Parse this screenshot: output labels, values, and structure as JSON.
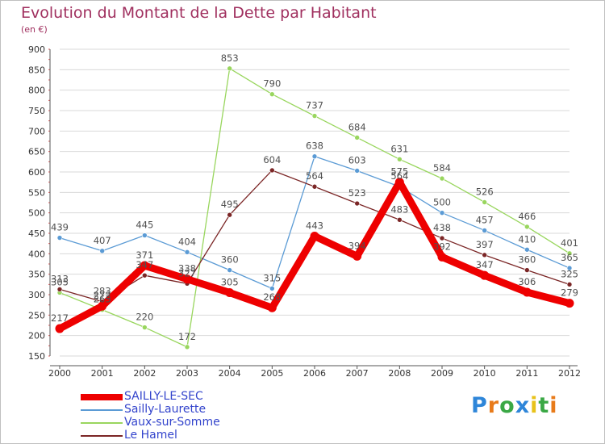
{
  "chart_data": {
    "type": "line",
    "title": "Evolution du Montant de la Dette par Habitant",
    "subtitle": "(en €)",
    "x": [
      "2000",
      "2001",
      "2002",
      "2003",
      "2004",
      "2005",
      "2006",
      "2007",
      "2008",
      "2009",
      "2010",
      "2011",
      "2012"
    ],
    "ylim": [
      150,
      900
    ],
    "yticks": [
      150,
      200,
      250,
      300,
      350,
      400,
      450,
      500,
      550,
      600,
      650,
      700,
      750,
      800,
      850,
      900
    ],
    "grid": "horizontal",
    "legend_position": "bottom-left",
    "series": [
      {
        "name": "SAILLY-LE-SEC",
        "color": "#ee0000",
        "values": [
          217,
          272,
          371,
          338,
          305,
          268,
          443,
          394,
          575,
          392,
          347,
          306,
          279
        ]
      },
      {
        "name": "Sailly-Laurette",
        "color": "#5b9bd5",
        "values": [
          439,
          407,
          445,
          404,
          360,
          315,
          638,
          603,
          564,
          500,
          457,
          410,
          365
        ]
      },
      {
        "name": "Vaux-sur-Somme",
        "color": "#99d65e",
        "values": [
          305,
          263,
          220,
          172,
          853,
          790,
          737,
          684,
          631,
          584,
          526,
          466,
          401
        ]
      },
      {
        "name": "Le Hamel",
        "color": "#7b2626",
        "values": [
          313,
          283,
          347,
          327,
          495,
          604,
          564,
          523,
          483,
          438,
          397,
          360,
          325
        ]
      }
    ]
  },
  "brand": {
    "letters": [
      "P",
      "r",
      "o",
      "x",
      "i",
      "t",
      "i"
    ],
    "colors": [
      "#2e86d9",
      "#e87b1a",
      "#3aa845",
      "#2e86d9",
      "#e8c21a",
      "#3aa845",
      "#e87b1a"
    ]
  }
}
